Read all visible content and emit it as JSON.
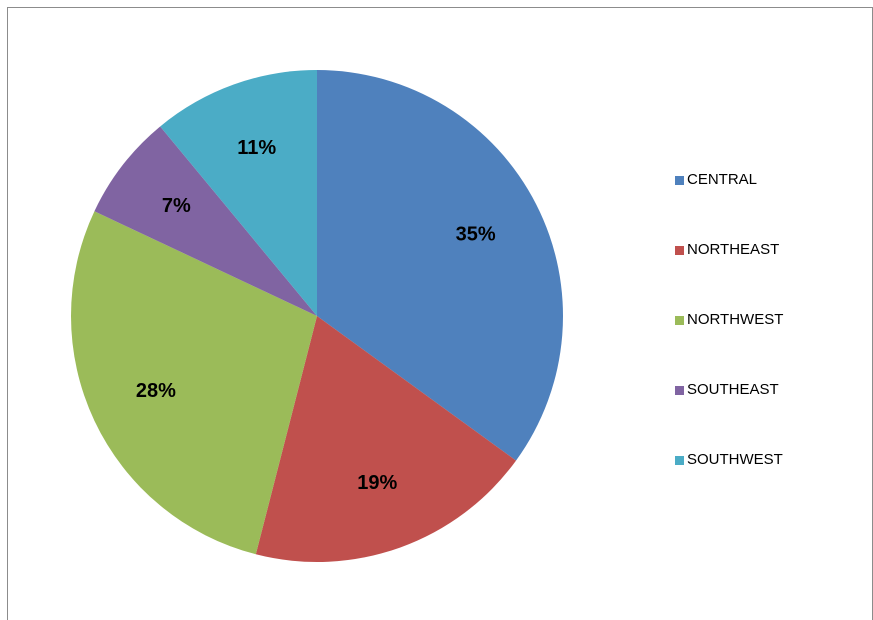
{
  "chart_data": {
    "type": "pie",
    "title": "",
    "slices": [
      {
        "label": "CENTRAL",
        "value": 35,
        "display": "35%",
        "color": "#4F81BD"
      },
      {
        "label": "NORTHEAST",
        "value": 19,
        "display": "19%",
        "color": "#C0504D"
      },
      {
        "label": "NORTHWEST",
        "value": 28,
        "display": "28%",
        "color": "#9BBB59"
      },
      {
        "label": "SOUTHEAST",
        "value": 7,
        "display": "7%",
        "color": "#8064A2"
      },
      {
        "label": "SOUTHWEST",
        "value": 11,
        "display": "11%",
        "color": "#4BACC6"
      }
    ],
    "start_angle": "12 o'clock",
    "direction": "clockwise",
    "data_labels": "percent",
    "legend_position": "right"
  }
}
